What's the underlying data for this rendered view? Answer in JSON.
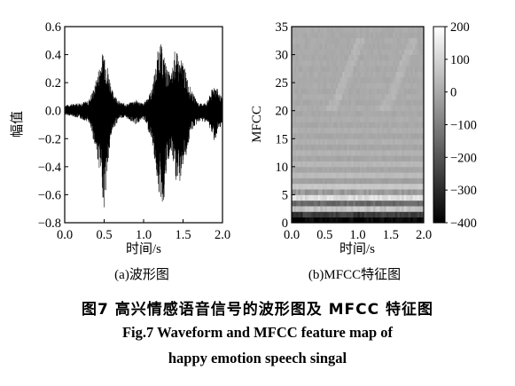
{
  "chart_data": [
    {
      "type": "line",
      "title": "",
      "subplot_label": "(a)波形图",
      "xlabel": "时间/s",
      "ylabel": "幅值",
      "xlim": [
        0.0,
        2.0
      ],
      "ylim": [
        -0.8,
        0.6
      ],
      "x_ticks": [
        "0.0",
        "0.5",
        "1.0",
        "1.5",
        "2.0"
      ],
      "y_ticks": [
        "−0.8",
        "−0.6",
        "−0.4",
        "−0.2",
        "0.0",
        "0.2",
        "0.4",
        "0.6"
      ],
      "series": [
        {
          "color": "#000000",
          "envelope": {
            "x": [
              0.0,
              0.1,
              0.2,
              0.3,
              0.38,
              0.45,
              0.5,
              0.55,
              0.6,
              0.7,
              0.8,
              0.9,
              1.0,
              1.1,
              1.15,
              1.2,
              1.25,
              1.3,
              1.35,
              1.4,
              1.45,
              1.5,
              1.55,
              1.6,
              1.7,
              1.8,
              1.9,
              2.0
            ],
            "upper": [
              0.04,
              0.05,
              0.06,
              0.07,
              0.18,
              0.35,
              0.46,
              0.3,
              0.15,
              0.06,
              0.05,
              0.08,
              0.05,
              0.15,
              0.3,
              0.51,
              0.42,
              0.3,
              0.25,
              0.45,
              0.37,
              0.36,
              0.25,
              0.15,
              0.05,
              0.06,
              0.2,
              0.08
            ],
            "lower": [
              -0.03,
              -0.04,
              -0.06,
              -0.08,
              -0.25,
              -0.45,
              -0.71,
              -0.4,
              -0.15,
              -0.05,
              -0.06,
              -0.1,
              -0.06,
              -0.2,
              -0.4,
              -0.62,
              -0.69,
              -0.4,
              -0.3,
              -0.5,
              -0.55,
              -0.4,
              -0.3,
              -0.15,
              -0.08,
              -0.08,
              -0.22,
              -0.1
            ]
          }
        }
      ]
    },
    {
      "type": "heatmap",
      "title": "",
      "subplot_label": "(b)MFCC特征图",
      "xlabel": "时间/s",
      "ylabel": "MFCC",
      "xlim": [
        0.0,
        2.0
      ],
      "ylim": [
        0,
        35
      ],
      "x_ticks": [
        "0.0",
        "0.5",
        "1.0",
        "1.5",
        "2.0"
      ],
      "y_ticks": [
        "0",
        "5",
        "10",
        "15",
        "20",
        "25",
        "30",
        "35"
      ],
      "colorbar": {
        "range": [
          -400,
          200
        ],
        "ticks": [
          "200",
          "100",
          "0",
          "−100",
          "−200",
          "−300",
          "−400"
        ],
        "colormap": "gray"
      },
      "row_mean_values": [
        -380,
        -250,
        60,
        -150,
        120,
        -40,
        70,
        -25,
        40,
        -10,
        30,
        -10,
        20,
        -10,
        15,
        -8,
        10,
        -5,
        8,
        -5,
        6,
        -4,
        5,
        -3,
        4,
        -3,
        4,
        -3,
        3,
        -3,
        3,
        -2,
        2,
        -2,
        2
      ]
    }
  ],
  "captions": {
    "cn": "图7   高兴情感语音信号的波形图及 MFCC 特征图",
    "en_line1": "Fig.7    Waveform and MFCC feature map of",
    "en_line2": "happy emotion speech singal"
  }
}
